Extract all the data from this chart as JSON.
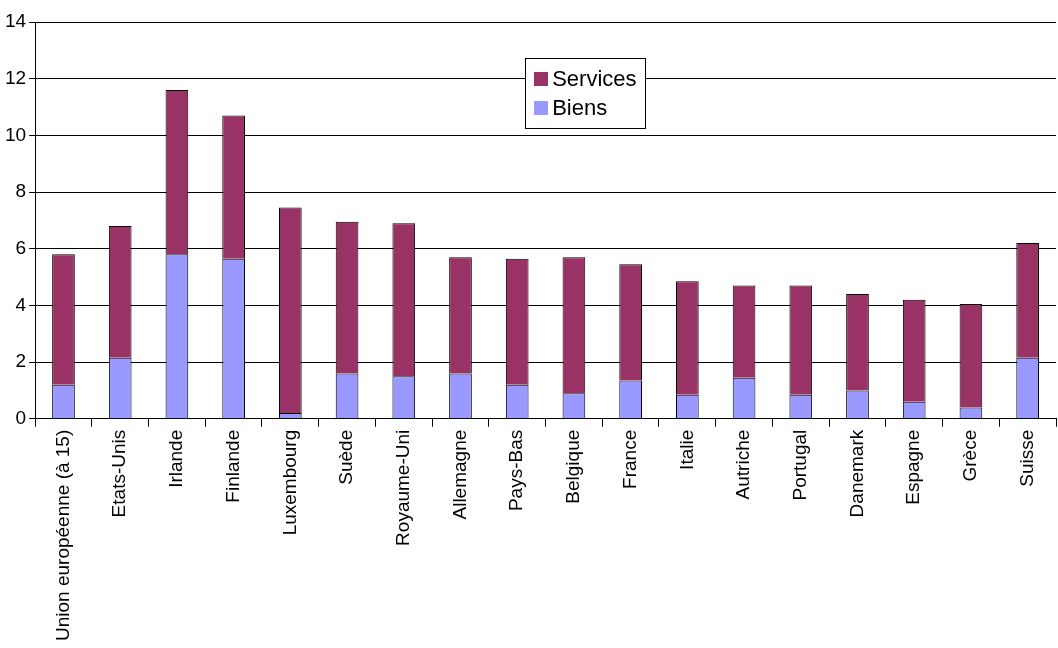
{
  "chart_data": {
    "type": "bar",
    "stacked": true,
    "categories": [
      "Union européenne (à 15)",
      "Etats-Unis",
      "Irlande",
      "Finlande",
      "Luxembourg",
      "Suède",
      "Royaume-Uni",
      "Allemagne",
      "Pays-Bas",
      "Belgique",
      "France",
      "Italie",
      "Autriche",
      "Portugal",
      "Danemark",
      "Espagne",
      "Grèce",
      "Suisse"
    ],
    "series": [
      {
        "name": "Biens",
        "color": "#9999ff",
        "values": [
          1.2,
          2.15,
          5.8,
          5.65,
          0.2,
          1.6,
          1.5,
          1.6,
          1.2,
          0.9,
          1.35,
          0.85,
          1.45,
          0.85,
          1.0,
          0.6,
          0.4,
          2.15
        ]
      },
      {
        "name": "Services",
        "color": "#993366",
        "values": [
          4.6,
          4.65,
          5.8,
          5.05,
          7.25,
          5.35,
          5.4,
          4.1,
          4.45,
          4.8,
          4.1,
          4.0,
          3.25,
          3.85,
          3.4,
          3.6,
          3.65,
          4.05
        ]
      }
    ],
    "ylim": [
      0,
      14
    ],
    "yticks": [
      0,
      2,
      4,
      6,
      8,
      10,
      12,
      14
    ],
    "grid": "y",
    "legend": "top"
  }
}
